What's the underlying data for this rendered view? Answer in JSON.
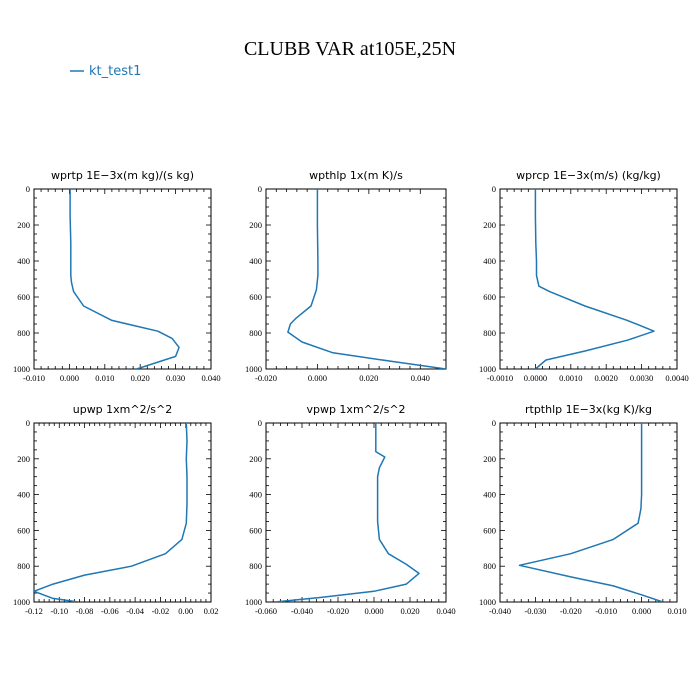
{
  "figure": {
    "title": "CLUBB VAR at105E,25N",
    "legend": {
      "label": "kt_test1",
      "color": "#1f77b4"
    }
  },
  "chart_data": [
    {
      "type": "line",
      "title": "wprtp  1E−3x(m kg)/(s kg)",
      "xlim": [
        -0.01,
        0.04
      ],
      "ylim": [
        1000,
        0
      ],
      "xticks": [
        "-0.010",
        "0.000",
        "0.010",
        "0.020",
        "0.030",
        "0.040"
      ],
      "xtick_values": [
        -0.01,
        0.0,
        0.01,
        0.02,
        0.03,
        0.04
      ],
      "yticks": [
        "0",
        "200",
        "400",
        "600",
        "800",
        "1000"
      ],
      "series": [
        {
          "color": "#1f77b4",
          "x": [
            0.0002,
            0.0002,
            0.0004,
            0.0004,
            0.0004,
            0.0006,
            0.0012,
            0.004,
            0.012,
            0.025,
            0.029,
            0.031,
            0.03,
            0.019
          ],
          "y": [
            0,
            150,
            300,
            400,
            480,
            520,
            570,
            650,
            730,
            790,
            830,
            880,
            930,
            1000
          ]
        }
      ]
    },
    {
      "type": "line",
      "title": "wpthlp  1x(m K)/s",
      "xlim": [
        -0.02,
        0.05
      ],
      "ylim": [
        1000,
        0
      ],
      "xticks": [
        "-0.020",
        "0.000",
        "0.020",
        "0.040"
      ],
      "xtick_values": [
        -0.02,
        0.0,
        0.02,
        0.04
      ],
      "yticks": [
        "0",
        "200",
        "400",
        "600",
        "800",
        "1000"
      ],
      "series": [
        {
          "color": "#1f77b4",
          "x": [
            0.0,
            0.0,
            0.0002,
            0.0002,
            -0.0004,
            -0.0025,
            -0.0085,
            -0.0105,
            -0.0115,
            -0.006,
            0.006,
            0.03,
            0.05
          ],
          "y": [
            0,
            200,
            400,
            480,
            560,
            650,
            720,
            750,
            795,
            850,
            910,
            960,
            1000
          ]
        }
      ]
    },
    {
      "type": "line",
      "title": "wprcp  1E−3x(m/s) (kg/kg)",
      "xlim": [
        -0.001,
        0.004
      ],
      "ylim": [
        1000,
        0
      ],
      "xticks": [
        "-0.0010",
        "0.0000",
        "0.0010",
        "0.0020",
        "0.0030",
        "0.0040"
      ],
      "xtick_values": [
        -0.001,
        0.0,
        0.001,
        0.002,
        0.003,
        0.004
      ],
      "yticks": [
        "0",
        "200",
        "400",
        "600",
        "800",
        "1000"
      ],
      "series": [
        {
          "color": "#1f77b4",
          "x": [
            0.0,
            0.0,
            1e-05,
            3e-05,
            3e-05,
            0.0001,
            0.0004,
            0.0014,
            0.0026,
            0.00335,
            0.0026,
            0.0014,
            0.0003,
            0.0
          ],
          "y": [
            0,
            150,
            300,
            400,
            480,
            540,
            570,
            650,
            730,
            790,
            840,
            900,
            950,
            1000
          ]
        }
      ]
    },
    {
      "type": "line",
      "title": "upwp  1xm^2/s^2",
      "xlim": [
        -0.12,
        0.02
      ],
      "ylim": [
        1000,
        0
      ],
      "xticks": [
        "-0.12",
        "-0.10",
        "-0.08",
        "-0.06",
        "-0.04",
        "-0.02",
        "0.00",
        "0.02"
      ],
      "xtick_values": [
        -0.12,
        -0.1,
        -0.08,
        -0.06,
        -0.04,
        -0.02,
        0.0,
        0.02
      ],
      "yticks": [
        "0",
        "200",
        "400",
        "600",
        "800",
        "1000"
      ],
      "series": [
        {
          "color": "#1f77b4",
          "x": [
            0.0005,
            0.001,
            0.0005,
            0.001,
            0.001,
            0.0005,
            -0.003,
            -0.016,
            -0.043,
            -0.08,
            -0.105,
            -0.12,
            -0.105,
            -0.085
          ],
          "y": [
            0,
            100,
            200,
            300,
            450,
            560,
            650,
            730,
            800,
            850,
            900,
            940,
            980,
            1000
          ]
        }
      ]
    },
    {
      "type": "line",
      "title": "vpwp  1xm^2/s^2",
      "xlim": [
        -0.06,
        0.04
      ],
      "ylim": [
        1000,
        0
      ],
      "xticks": [
        "-0.060",
        "-0.040",
        "-0.020",
        "0.000",
        "0.020",
        "0.040"
      ],
      "xtick_values": [
        -0.06,
        -0.04,
        -0.02,
        0.0,
        0.02,
        0.04
      ],
      "yticks": [
        "0",
        "200",
        "400",
        "600",
        "800",
        "1000"
      ],
      "series": [
        {
          "color": "#1f77b4",
          "x": [
            0.001,
            0.001,
            0.001,
            0.006,
            0.003,
            0.002,
            0.002,
            0.002,
            0.003,
            0.008,
            0.018,
            0.025,
            0.018,
            0.0,
            -0.03,
            -0.055
          ],
          "y": [
            0,
            100,
            160,
            190,
            250,
            300,
            400,
            550,
            650,
            730,
            790,
            840,
            900,
            940,
            975,
            1000
          ]
        }
      ]
    },
    {
      "type": "line",
      "title": "rtpthlp  1E−3x(kg K)/kg",
      "xlim": [
        -0.04,
        0.01
      ],
      "ylim": [
        1000,
        0
      ],
      "xticks": [
        "-0.040",
        "-0.030",
        "-0.020",
        "-0.010",
        "0.000",
        "0.010"
      ],
      "xtick_values": [
        -0.04,
        -0.03,
        -0.02,
        -0.01,
        0.0,
        0.01
      ],
      "yticks": [
        "0",
        "200",
        "400",
        "600",
        "800",
        "1000"
      ],
      "series": [
        {
          "color": "#1f77b4",
          "x": [
            0.0,
            0.0,
            0.0,
            -0.0002,
            -0.001,
            -0.008,
            -0.02,
            -0.0345,
            -0.02,
            -0.008,
            0.0,
            0.006
          ],
          "y": [
            0,
            200,
            400,
            480,
            560,
            650,
            730,
            795,
            860,
            910,
            960,
            1000
          ]
        }
      ]
    }
  ]
}
